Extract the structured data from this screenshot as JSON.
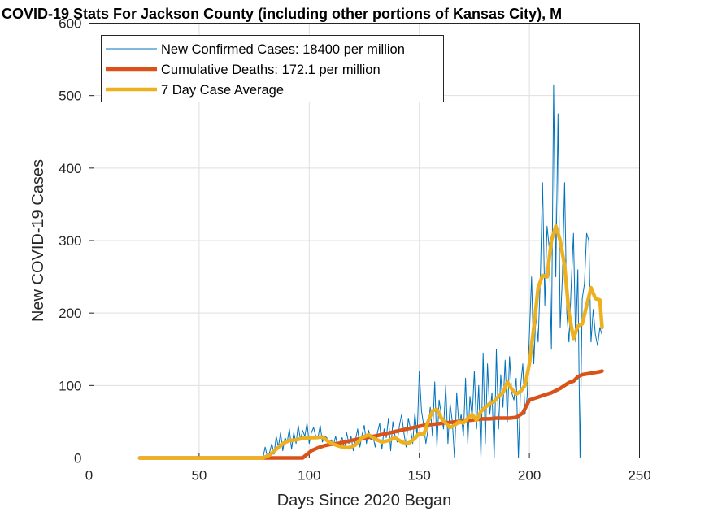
{
  "chart_data": {
    "type": "line",
    "title": "COVID-19 Stats For Jackson County (including other portions of Kansas City), M",
    "xlabel": "Days Since 2020 Began",
    "ylabel": "New COVID-19 Cases",
    "xlim": [
      0,
      250
    ],
    "ylim": [
      0,
      600
    ],
    "xticks": [
      "0",
      "50",
      "100",
      "150",
      "200",
      "250"
    ],
    "yticks": [
      "0",
      "100",
      "200",
      "300",
      "400",
      "500",
      "600"
    ],
    "grid": true,
    "legend_position": "top-left",
    "series": [
      {
        "name": "New Confirmed Cases: 18400 per million",
        "color": "#0072BD",
        "x": [
          23,
          40,
          60,
          75,
          79,
          80,
          81,
          82,
          83,
          84,
          85,
          86,
          87,
          88,
          89,
          90,
          91,
          92,
          93,
          94,
          95,
          96,
          97,
          98,
          99,
          100,
          101,
          102,
          103,
          104,
          105,
          106,
          107,
          108,
          109,
          110,
          111,
          112,
          113,
          114,
          115,
          116,
          117,
          118,
          119,
          120,
          121,
          122,
          123,
          124,
          125,
          126,
          127,
          128,
          129,
          130,
          131,
          132,
          133,
          134,
          135,
          136,
          137,
          138,
          139,
          140,
          141,
          142,
          143,
          144,
          145,
          146,
          147,
          148,
          149,
          150,
          151,
          152,
          153,
          154,
          155,
          156,
          157,
          158,
          159,
          160,
          161,
          162,
          163,
          164,
          165,
          166,
          167,
          168,
          169,
          170,
          171,
          172,
          173,
          174,
          175,
          176,
          177,
          178,
          179,
          180,
          181,
          182,
          183,
          184,
          185,
          186,
          187,
          188,
          189,
          190,
          191,
          192,
          193,
          194,
          195,
          196,
          197,
          198,
          199,
          200,
          201,
          202,
          203,
          204,
          205,
          206,
          207,
          208,
          209,
          210,
          211,
          212,
          213,
          214,
          215,
          216,
          217,
          218,
          219,
          220,
          221,
          222,
          223,
          224,
          225,
          226,
          227,
          228,
          229,
          230,
          231,
          232,
          233
        ],
        "y": [
          0,
          0,
          0,
          0,
          0,
          15,
          2,
          8,
          20,
          5,
          30,
          15,
          35,
          10,
          28,
          22,
          40,
          12,
          35,
          20,
          45,
          25,
          38,
          30,
          48,
          20,
          35,
          42,
          30,
          28,
          45,
          22,
          30,
          28,
          20,
          25,
          18,
          30,
          15,
          22,
          28,
          12,
          35,
          20,
          30,
          10,
          25,
          40,
          15,
          32,
          45,
          20,
          38,
          25,
          30,
          15,
          35,
          48,
          12,
          40,
          28,
          55,
          10,
          50,
          30,
          22,
          45,
          60,
          35,
          15,
          55,
          40,
          20,
          62,
          30,
          120,
          65,
          45,
          20,
          40,
          70,
          30,
          105,
          15,
          80,
          60,
          40,
          100,
          20,
          75,
          50,
          0,
          90,
          45,
          60,
          30,
          110,
          20,
          85,
          55,
          120,
          40,
          100,
          0,
          145,
          20,
          130,
          60,
          90,
          0,
          150,
          40,
          115,
          70,
          135,
          50,
          140,
          90,
          80,
          110,
          0,
          100,
          130,
          60,
          85,
          170,
          250,
          130,
          200,
          160,
          250,
          380,
          210,
          320,
          290,
          150,
          515,
          250,
          475,
          180,
          250,
          380,
          200,
          160,
          240,
          310,
          160,
          260,
          0,
          220,
          240,
          310,
          300,
          160,
          205,
          170,
          155,
          180,
          170
        ],
        "width": 1
      },
      {
        "name": "Cumulative Deaths: 172.1 per million",
        "color": "#D95319",
        "x": [
          23,
          50,
          75,
          86,
          97,
          101,
          104,
          107,
          110,
          113,
          116,
          119,
          122,
          125,
          128,
          131,
          134,
          137,
          140,
          143,
          146,
          149,
          152,
          155,
          158,
          161,
          164,
          167,
          170,
          173,
          176,
          179,
          182,
          185,
          188,
          191,
          194,
          197,
          200,
          202,
          204,
          206,
          208,
          210,
          212,
          214,
          216,
          218,
          220,
          222,
          224,
          226,
          228,
          230,
          232,
          233
        ],
        "y": [
          0,
          0,
          0,
          0,
          0,
          10,
          14,
          17,
          19,
          20,
          22,
          24,
          26,
          27,
          29,
          31,
          33,
          35,
          37,
          39,
          41,
          43,
          45,
          46,
          47,
          48,
          49,
          50,
          51,
          52,
          53,
          54,
          54,
          55,
          55,
          55,
          56,
          62,
          80,
          82,
          84,
          86,
          88,
          90,
          93,
          96,
          100,
          104,
          106,
          112,
          115,
          116,
          117,
          118,
          119,
          120
        ],
        "width": 4.5
      },
      {
        "name": "7 Day Case Average",
        "color": "#EDB120",
        "x": [
          23,
          40,
          60,
          75,
          79,
          82,
          85,
          88,
          91,
          94,
          97,
          100,
          103,
          106,
          109,
          112,
          115,
          118,
          121,
          124,
          127,
          130,
          133,
          136,
          139,
          142,
          145,
          148,
          150,
          152,
          154,
          156,
          158,
          160,
          162,
          164,
          166,
          168,
          170,
          172,
          174,
          176,
          178,
          180,
          182,
          184,
          186,
          188,
          190,
          192,
          194,
          196,
          198,
          200,
          202,
          204,
          206,
          208,
          210,
          212,
          214,
          216,
          218,
          220,
          222,
          224,
          226,
          228,
          230,
          232,
          233
        ],
        "y": [
          0,
          0,
          0,
          0,
          0,
          4,
          12,
          20,
          24,
          25,
          27,
          28,
          28,
          29,
          22,
          18,
          15,
          14,
          18,
          28,
          32,
          26,
          22,
          24,
          28,
          22,
          20,
          27,
          34,
          32,
          50,
          65,
          67,
          55,
          48,
          42,
          45,
          50,
          48,
          55,
          60,
          52,
          64,
          70,
          75,
          78,
          85,
          90,
          105,
          95,
          88,
          92,
          100,
          130,
          180,
          235,
          252,
          250,
          300,
          320,
          300,
          265,
          200,
          165,
          182,
          185,
          210,
          235,
          220,
          218,
          180
        ],
        "width": 4.5
      }
    ]
  }
}
